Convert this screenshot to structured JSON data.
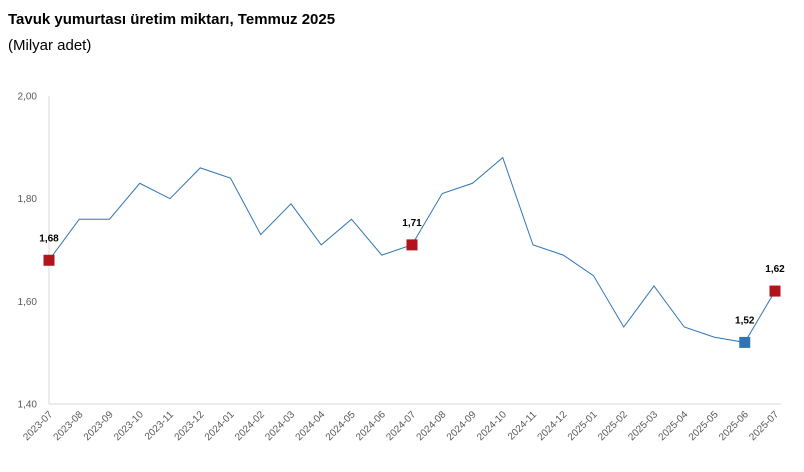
{
  "chart_data": {
    "type": "line",
    "title": "Tavuk yumurtası üretim miktarı, Temmuz 2025",
    "subtitle": "(Milyar adet)",
    "xlabel": "",
    "ylabel": "",
    "ylim": [
      1.4,
      2.0
    ],
    "yticks": [
      "1,40",
      "1,60",
      "1,80",
      "2,00"
    ],
    "grid": false,
    "legend": "none",
    "line_color": "#2E75B6",
    "marker_red": "#B3131B",
    "marker_blue": "#2E75B6",
    "categories": [
      "2023-07",
      "2023-08",
      "2023-09",
      "2023-10",
      "2023-11",
      "2023-12",
      "2024-01",
      "2024-02",
      "2024-03",
      "2024-04",
      "2024-05",
      "2024-06",
      "2024-07",
      "2024-08",
      "2024-09",
      "2024-10",
      "2024-11",
      "2024-12",
      "2025-01",
      "2025-02",
      "2025-03",
      "2025-04",
      "2025-05",
      "2025-06",
      "2025-07"
    ],
    "series": [
      {
        "values": [
          1.68,
          1.76,
          1.76,
          1.83,
          1.8,
          1.86,
          1.84,
          1.73,
          1.79,
          1.71,
          1.76,
          1.69,
          1.71,
          1.81,
          1.83,
          1.88,
          1.71,
          1.69,
          1.65,
          1.55,
          1.63,
          1.55,
          1.53,
          1.52,
          1.62
        ]
      }
    ],
    "highlights": [
      {
        "index": 0,
        "label": "1,68",
        "color": "red"
      },
      {
        "index": 12,
        "label": "1,71",
        "color": "red"
      },
      {
        "index": 23,
        "label": "1,52",
        "color": "blue"
      },
      {
        "index": 24,
        "label": "1,62",
        "color": "red"
      }
    ]
  }
}
